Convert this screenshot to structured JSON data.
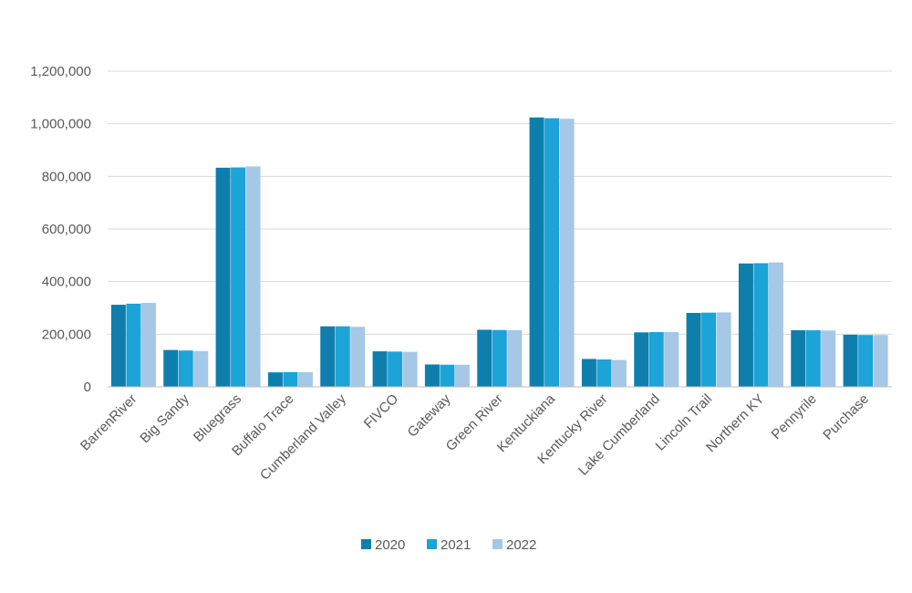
{
  "chart_data": {
    "type": "bar",
    "title": "",
    "xlabel": "",
    "ylabel": "",
    "ylim": [
      0,
      1200000
    ],
    "yticks": [
      0,
      200000,
      400000,
      600000,
      800000,
      1000000,
      1200000
    ],
    "ytick_labels": [
      "0",
      "200,000",
      "400,000",
      "600,000",
      "800,000",
      "1,000,000",
      "1,200,000"
    ],
    "grid": true,
    "legend_position": "bottom",
    "categories": [
      "BarrenRiver",
      "Big Sandy",
      "Bluegrass",
      "Buffalo Trace",
      "Cumberland Valley",
      "FIVCO",
      "Gateway",
      "Green River",
      "Kentuckiana",
      "Kentucky River",
      "Lake Cumberland",
      "Lincoln Trail",
      "Northern KY",
      "Pennyrile",
      "Purchase"
    ],
    "series": [
      {
        "name": "2020",
        "color": "#0e7fad",
        "values": [
          312000,
          140000,
          833000,
          55000,
          230000,
          135000,
          85000,
          217000,
          1024000,
          106000,
          207000,
          281000,
          469000,
          215000,
          198000
        ]
      },
      {
        "name": "2021",
        "color": "#1ca3d8",
        "values": [
          316000,
          138000,
          834000,
          56000,
          230000,
          134000,
          84000,
          216000,
          1021000,
          104000,
          208000,
          282000,
          470000,
          215000,
          197000
        ]
      },
      {
        "name": "2022",
        "color": "#a4c8e6",
        "values": [
          319000,
          136000,
          838000,
          56000,
          228000,
          133000,
          84000,
          215000,
          1019000,
          102000,
          208000,
          283000,
          473000,
          214000,
          197000
        ]
      }
    ]
  }
}
